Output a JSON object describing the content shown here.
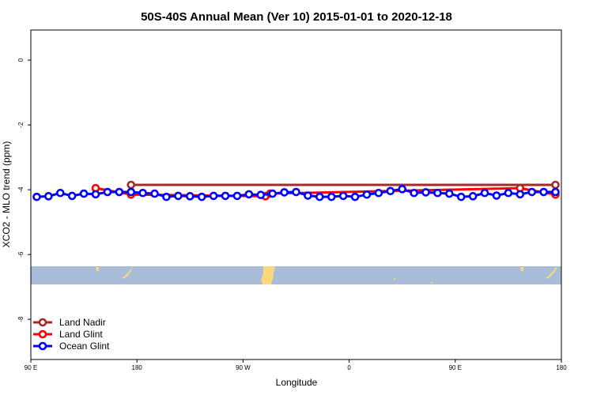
{
  "chart_data": {
    "type": "line",
    "title": "50S-40S Annual Mean (Ver 10)   2015-01-01 to 2020-12-18",
    "xlabel": "Longitude",
    "ylabel": "XCO2 - MLO trend (ppm)",
    "xlim": [
      90,
      540
    ],
    "ylim": [
      -9.24,
      0.93
    ],
    "x_ticks": [
      {
        "value": 90,
        "label": "90 E"
      },
      {
        "value": 180,
        "label": "180"
      },
      {
        "value": 270,
        "label": "90 W"
      },
      {
        "value": 360,
        "label": "0"
      },
      {
        "value": 450,
        "label": "90 E"
      },
      {
        "value": 540,
        "label": "180"
      }
    ],
    "y_ticks": [
      {
        "value": 0,
        "label": "0"
      },
      {
        "value": -2,
        "label": "-2"
      },
      {
        "value": -4,
        "label": "-4"
      },
      {
        "value": -6,
        "label": "-6"
      },
      {
        "value": -8,
        "label": "-8"
      }
    ],
    "grid": false,
    "legend_position": "bottom-left",
    "inset_map": {
      "description_colors": {
        "ocean": "#a8bdd9",
        "land": "#fcd87a"
      },
      "value_range": [
        -6.36,
        -6.9
      ]
    },
    "series": [
      {
        "name": "Land Nadir",
        "color": "#a52a2a",
        "x": [
          175,
          535
        ],
        "y": [
          -3.85,
          -3.85
        ]
      },
      {
        "name": "Land Glint",
        "color": "#ff0000",
        "x": [
          145,
          175,
          289,
          293,
          505,
          535
        ],
        "y": [
          -3.95,
          -4.15,
          -4.2,
          -4.12,
          -3.95,
          -4.15
        ]
      },
      {
        "name": "Ocean Glint",
        "color": "#0000ff",
        "x": [
          95,
          105,
          115,
          125,
          135,
          145,
          155,
          165,
          175,
          185,
          195,
          205,
          215,
          225,
          235,
          245,
          255,
          265,
          275,
          285,
          295,
          305,
          315,
          325,
          335,
          345,
          355,
          365,
          375,
          385,
          395,
          405,
          415,
          425,
          435,
          445,
          455,
          465,
          475,
          485,
          495,
          505,
          515,
          525,
          535
        ],
        "y": [
          -4.22,
          -4.2,
          -4.1,
          -4.19,
          -4.12,
          -4.14,
          -4.07,
          -4.07,
          -4.07,
          -4.1,
          -4.12,
          -4.22,
          -4.19,
          -4.2,
          -4.22,
          -4.19,
          -4.19,
          -4.19,
          -4.14,
          -4.16,
          -4.12,
          -4.08,
          -4.07,
          -4.18,
          -4.22,
          -4.22,
          -4.19,
          -4.22,
          -4.15,
          -4.1,
          -4.04,
          -3.98,
          -4.1,
          -4.08,
          -4.1,
          -4.12,
          -4.22,
          -4.2,
          -4.1,
          -4.18,
          -4.1,
          -4.14,
          -4.07,
          -4.07,
          -4.07
        ]
      }
    ]
  }
}
